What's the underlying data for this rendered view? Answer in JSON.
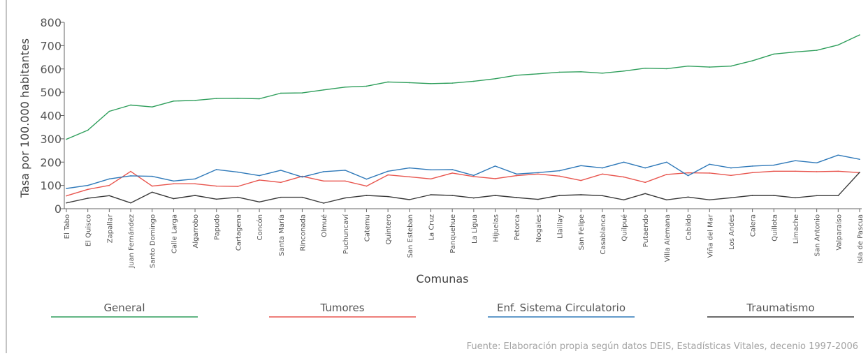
{
  "chart_data": {
    "type": "line",
    "xlabel": "Comunas",
    "ylabel": "Tasa por 100.000 habitantes",
    "ylim": [
      0,
      800
    ],
    "yticks": [
      0,
      100,
      200,
      300,
      400,
      500,
      600,
      700,
      800
    ],
    "grid": false,
    "legend_position": "bottom",
    "categories": [
      "El Tabo",
      "El Quisco",
      "Zapallar",
      "Juan Fernández",
      "Santo Domingo",
      "Calle Larga",
      "Algarrobo",
      "Papudo",
      "Cartagena",
      "Concón",
      "Santa María",
      "Rinconada",
      "Olmué",
      "Puchuncaví",
      "Catemu",
      "Quintero",
      "San Esteban",
      "La Cruz",
      "Panquehue",
      "La Ligua",
      "Hijuelas",
      "Petorca",
      "Nogales",
      "Llaillay",
      "San Felipe",
      "Casablanca",
      "Quilpué",
      "Putaendo",
      "Villa Alemana",
      "Cabildo",
      "Viña del Mar",
      "Los Andes",
      "Calera",
      "Quillota",
      "Limache",
      "San Antonio",
      "Valparaíso",
      "Isla de Pascua"
    ],
    "series": [
      {
        "name": "General",
        "color": "#2e9e5b",
        "values": [
          298,
          337,
          418,
          445,
          437,
          462,
          465,
          473,
          474,
          472,
          496,
          497,
          510,
          522,
          526,
          544,
          541,
          537,
          539,
          547,
          558,
          573,
          579,
          586,
          588,
          582,
          591,
          603,
          601,
          612,
          608,
          612,
          635,
          664,
          673,
          680,
          703,
          746
        ]
      },
      {
        "name": "Tumores",
        "color": "#e8554e",
        "values": [
          55,
          83,
          100,
          160,
          97,
          107,
          107,
          97,
          96,
          123,
          113,
          139,
          119,
          119,
          97,
          145,
          137,
          128,
          153,
          138,
          129,
          142,
          149,
          140,
          121,
          149,
          136,
          113,
          147,
          154,
          153,
          143,
          155,
          161,
          161,
          159,
          161,
          155
        ]
      },
      {
        "name": "Enf. Sistema Circulatorio",
        "color": "#2f79b9",
        "values": [
          87,
          100,
          128,
          141,
          139,
          119,
          128,
          168,
          157,
          142,
          165,
          136,
          159,
          165,
          127,
          161,
          175,
          167,
          168,
          143,
          183,
          149,
          155,
          163,
          185,
          175,
          200,
          175,
          200,
          142,
          191,
          175,
          183,
          187,
          206,
          197,
          230,
          212
        ]
      },
      {
        "name": "Traumatismo",
        "color": "#3a3a3a",
        "values": [
          25,
          45,
          56,
          25,
          71,
          43,
          57,
          41,
          49,
          29,
          49,
          49,
          24,
          46,
          57,
          52,
          39,
          60,
          57,
          46,
          57,
          48,
          40,
          57,
          60,
          56,
          38,
          65,
          38,
          50,
          38,
          47,
          57,
          57,
          47,
          56,
          56,
          156
        ]
      }
    ]
  },
  "source": "Fuente: Elaboración propia según datos DEIS, Estadísticas Vitales, decenio 1997-2006"
}
